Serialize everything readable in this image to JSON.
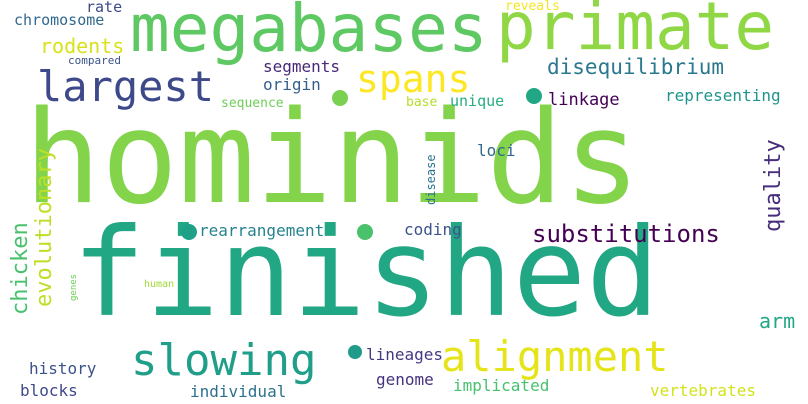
{
  "words": {
    "hominids": "hominids",
    "finished": "finished",
    "megabases": "megabases",
    "primate": "primate",
    "largest": "largest",
    "spans": "spans",
    "slowing": "slowing",
    "alignment": "alignment",
    "substitutions": "substitutions",
    "disequilibrium": "disequilibrium",
    "evolutionary": "evolutionary",
    "chicken": "chicken",
    "quality": "quality",
    "rodents": "rodents",
    "chromosome": "chromosome",
    "rate": "rate",
    "compared": "compared",
    "reveals": "reveals",
    "segments": "segments",
    "origin": "origin",
    "sequence": "sequence",
    "base": "base",
    "unique": "unique",
    "linkage": "linkage",
    "representing": "representing",
    "loci": "loci",
    "disease": "disease",
    "rearrangement": "rearrangement",
    "coding": "coding",
    "arm": "arm",
    "genes": "genes",
    "human": "human",
    "history": "history",
    "blocks": "blocks",
    "individual": "individual",
    "lineages": "lineages",
    "genome": "genome",
    "implicated": "implicated",
    "vertebrates": "vertebrates"
  },
  "colors": {
    "hominids": "#84d44b",
    "finished": "#22a785",
    "megabases": "#5ec962",
    "primate": "#8fd744",
    "largest": "#3e4989",
    "spans": "#fde725",
    "slowing": "#1f9e89",
    "alignment": "#e5e419",
    "substitutions": "#440154",
    "disequilibrium": "#2a788e",
    "evolutionary": "#bddf26",
    "chicken": "#48c16e",
    "quality": "#472d7b",
    "rodents": "#d8e219",
    "chromosome": "#31688e",
    "rate": "#3e4989",
    "compared": "#3b528b",
    "reveals": "#f6e620",
    "segments": "#482878",
    "origin": "#355f8d",
    "sequence": "#6ece58",
    "base": "#b5de2b",
    "unique": "#27ad81",
    "linkage": "#440154",
    "representing": "#1f948c",
    "loci": "#31688e",
    "disease": "#2c728e",
    "rearrangement": "#26828e",
    "coding": "#3b528b",
    "arm": "#22a785",
    "genes": "#6ece58",
    "human": "#a0da39",
    "history": "#3b528b",
    "blocks": "#3e4989",
    "individual": "#2d708e",
    "lineages": "#443983",
    "genome": "#46327e",
    "implicated": "#48c16e",
    "vertebrates": "#d2e21b",
    "dots": [
      "#7ad151",
      "#22a785",
      "#1fa187",
      "#4ac16d",
      "#1e9b8a"
    ]
  }
}
